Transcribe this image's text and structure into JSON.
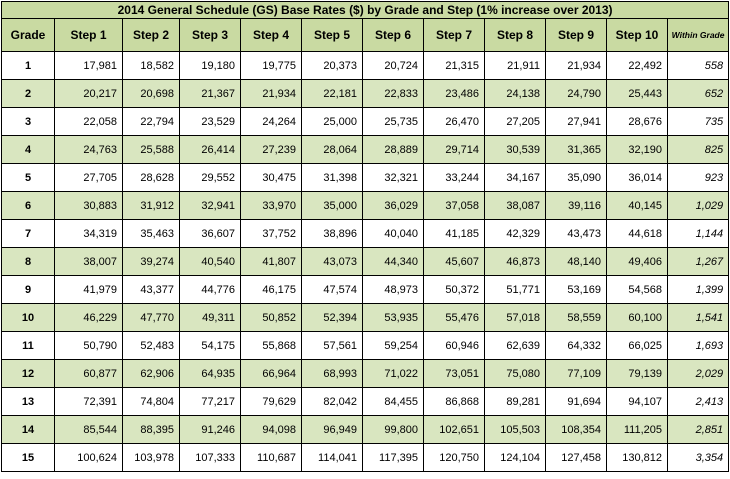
{
  "title": "2014 General Schedule (GS) Base Rates ($) by Grade and Step (1% increase over 2013)",
  "columns": [
    "Grade",
    "Step 1",
    "Step 2",
    "Step 3",
    "Step 4",
    "Step 5",
    "Step 6",
    "Step 7",
    "Step 8",
    "Step 9",
    "Step 10",
    "Within Grade"
  ],
  "rows": [
    {
      "grade": "1",
      "steps": [
        "17,981",
        "18,582",
        "19,180",
        "19,775",
        "20,373",
        "20,724",
        "21,315",
        "21,911",
        "21,934",
        "22,492"
      ],
      "within": "558"
    },
    {
      "grade": "2",
      "steps": [
        "20,217",
        "20,698",
        "21,367",
        "21,934",
        "22,181",
        "22,833",
        "23,486",
        "24,138",
        "24,790",
        "25,443"
      ],
      "within": "652"
    },
    {
      "grade": "3",
      "steps": [
        "22,058",
        "22,794",
        "23,529",
        "24,264",
        "25,000",
        "25,735",
        "26,470",
        "27,205",
        "27,941",
        "28,676"
      ],
      "within": "735"
    },
    {
      "grade": "4",
      "steps": [
        "24,763",
        "25,588",
        "26,414",
        "27,239",
        "28,064",
        "28,889",
        "29,714",
        "30,539",
        "31,365",
        "32,190"
      ],
      "within": "825"
    },
    {
      "grade": "5",
      "steps": [
        "27,705",
        "28,628",
        "29,552",
        "30,475",
        "31,398",
        "32,321",
        "33,244",
        "34,167",
        "35,090",
        "36,014"
      ],
      "within": "923"
    },
    {
      "grade": "6",
      "steps": [
        "30,883",
        "31,912",
        "32,941",
        "33,970",
        "35,000",
        "36,029",
        "37,058",
        "38,087",
        "39,116",
        "40,145"
      ],
      "within": "1,029"
    },
    {
      "grade": "7",
      "steps": [
        "34,319",
        "35,463",
        "36,607",
        "37,752",
        "38,896",
        "40,040",
        "41,185",
        "42,329",
        "43,473",
        "44,618"
      ],
      "within": "1,144"
    },
    {
      "grade": "8",
      "steps": [
        "38,007",
        "39,274",
        "40,540",
        "41,807",
        "43,073",
        "44,340",
        "45,607",
        "46,873",
        "48,140",
        "49,406"
      ],
      "within": "1,267"
    },
    {
      "grade": "9",
      "steps": [
        "41,979",
        "43,377",
        "44,776",
        "46,175",
        "47,574",
        "48,973",
        "50,372",
        "51,771",
        "53,169",
        "54,568"
      ],
      "within": "1,399"
    },
    {
      "grade": "10",
      "steps": [
        "46,229",
        "47,770",
        "49,311",
        "50,852",
        "52,394",
        "53,935",
        "55,476",
        "57,018",
        "58,559",
        "60,100"
      ],
      "within": "1,541"
    },
    {
      "grade": "11",
      "steps": [
        "50,790",
        "52,483",
        "54,175",
        "55,868",
        "57,561",
        "59,254",
        "60,946",
        "62,639",
        "64,332",
        "66,025"
      ],
      "within": "1,693"
    },
    {
      "grade": "12",
      "steps": [
        "60,877",
        "62,906",
        "64,935",
        "66,964",
        "68,993",
        "71,022",
        "73,051",
        "75,080",
        "77,109",
        "79,139"
      ],
      "within": "2,029"
    },
    {
      "grade": "13",
      "steps": [
        "72,391",
        "74,804",
        "77,217",
        "79,629",
        "82,042",
        "84,455",
        "86,868",
        "89,281",
        "91,694",
        "94,107"
      ],
      "within": "2,413"
    },
    {
      "grade": "14",
      "steps": [
        "85,544",
        "88,395",
        "91,246",
        "94,098",
        "96,949",
        "99,800",
        "102,651",
        "105,503",
        "108,354",
        "111,205"
      ],
      "within": "2,851"
    },
    {
      "grade": "15",
      "steps": [
        "100,624",
        "103,978",
        "107,333",
        "110,687",
        "114,041",
        "117,395",
        "120,750",
        "124,104",
        "127,458",
        "130,812"
      ],
      "within": "3,354"
    }
  ],
  "colors": {
    "header_fill": "#c9daa2",
    "band_fill": "#d9e6c0",
    "border": "#000000"
  }
}
